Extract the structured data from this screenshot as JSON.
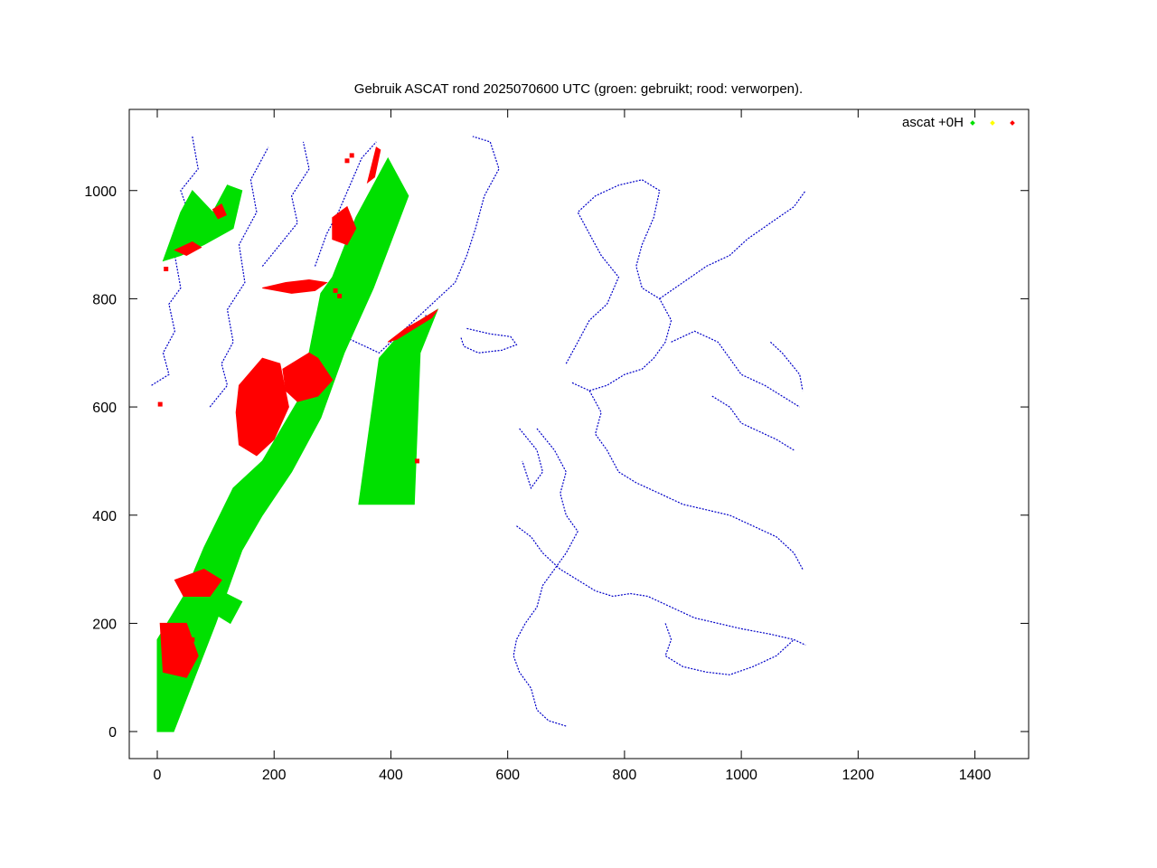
{
  "chart_data": {
    "type": "scatter",
    "title": "Gebruik ASCAT rond 2025070600 UTC (groen: gebruikt; rood: verworpen).",
    "xlabel": "",
    "ylabel": "",
    "xlim": [
      -48,
      1492
    ],
    "ylim": [
      -50,
      1150
    ],
    "x_ticks": [
      0,
      200,
      400,
      600,
      800,
      1000,
      1200,
      1400
    ],
    "y_ticks": [
      0,
      200,
      400,
      600,
      800,
      1000
    ],
    "grid": false,
    "legend_position": "top-right",
    "legend": {
      "label": "ascat +0H",
      "colors": [
        "#00e000",
        "#ffff00",
        "#ff0000"
      ]
    },
    "colors": {
      "used": "#00e000",
      "rejected": "#ff0000",
      "coastline": "#0000c8"
    },
    "series": [
      {
        "kind": "used",
        "polygons": [
          [
            [
              0,
              0
            ],
            [
              28,
              0
            ],
            [
              100,
              200
            ],
            [
              145,
              335
            ],
            [
              180,
              400
            ],
            [
              230,
              480
            ],
            [
              280,
              580
            ],
            [
              320,
              700
            ],
            [
              370,
              820
            ],
            [
              430,
              990
            ],
            [
              395,
              1060
            ],
            [
              340,
              950
            ],
            [
              300,
              840
            ],
            [
              280,
              810
            ],
            [
              260,
              700
            ],
            [
              240,
              610
            ],
            [
              180,
              500
            ],
            [
              130,
              450
            ],
            [
              80,
              340
            ],
            [
              45,
              250
            ],
            [
              0,
              170
            ]
          ],
          [
            [
              40,
              960
            ],
            [
              60,
              1000
            ],
            [
              95,
              960
            ],
            [
              120,
              1010
            ],
            [
              145,
              1000
            ],
            [
              130,
              930
            ],
            [
              80,
              900
            ],
            [
              40,
              880
            ],
            [
              10,
              870
            ]
          ],
          [
            [
              345,
              420
            ],
            [
              440,
              420
            ],
            [
              450,
              700
            ],
            [
              480,
              780
            ],
            [
              420,
              740
            ],
            [
              380,
              690
            ]
          ],
          [
            [
              45,
              240
            ],
            [
              80,
              230
            ],
            [
              125,
              200
            ],
            [
              145,
              240
            ],
            [
              90,
              270
            ]
          ]
        ]
      },
      {
        "kind": "rejected",
        "polygons": [
          [
            [
              140,
              640
            ],
            [
              180,
              690
            ],
            [
              210,
              680
            ],
            [
              225,
              600
            ],
            [
              200,
              540
            ],
            [
              170,
              510
            ],
            [
              140,
              530
            ],
            [
              135,
              590
            ]
          ],
          [
            [
              215,
              670
            ],
            [
              260,
              700
            ],
            [
              275,
              690
            ],
            [
              300,
              650
            ],
            [
              275,
              620
            ],
            [
              240,
              610
            ],
            [
              220,
              630
            ]
          ],
          [
            [
              5,
              200
            ],
            [
              50,
              200
            ],
            [
              70,
              140
            ],
            [
              50,
              100
            ],
            [
              10,
              110
            ]
          ],
          [
            [
              30,
              280
            ],
            [
              80,
              300
            ],
            [
              110,
              280
            ],
            [
              90,
              250
            ],
            [
              45,
              250
            ]
          ],
          [
            [
              300,
              950
            ],
            [
              325,
              970
            ],
            [
              340,
              930
            ],
            [
              325,
              900
            ],
            [
              300,
              910
            ]
          ],
          [
            [
              180,
              820
            ],
            [
              220,
              830
            ],
            [
              260,
              835
            ],
            [
              290,
              830
            ],
            [
              270,
              815
            ],
            [
              230,
              810
            ]
          ],
          [
            [
              360,
              1015
            ],
            [
              375,
              1080
            ],
            [
              382,
              1075
            ],
            [
              372,
              1025
            ]
          ],
          [
            [
              395,
              720
            ],
            [
              425,
              745
            ],
            [
              450,
              760
            ],
            [
              480,
              780
            ],
            [
              470,
              765
            ],
            [
              440,
              745
            ],
            [
              410,
              725
            ]
          ],
          [
            [
              30,
              890
            ],
            [
              60,
              905
            ],
            [
              75,
              895
            ],
            [
              50,
              880
            ]
          ],
          [
            [
              95,
              965
            ],
            [
              110,
              975
            ],
            [
              118,
              955
            ],
            [
              104,
              948
            ]
          ]
        ],
        "points": [
          [
            5,
            605
          ],
          [
            15,
            855
          ],
          [
            305,
            815
          ],
          [
            312,
            805
          ],
          [
            325,
            1055
          ],
          [
            333,
            1065
          ],
          [
            445,
            500
          ],
          [
            50,
            160
          ],
          [
            60,
            170
          ],
          [
            40,
            130
          ]
        ]
      }
    ],
    "coastlines": [
      [
        [
          -10,
          640
        ],
        [
          20,
          660
        ],
        [
          10,
          700
        ],
        [
          30,
          740
        ],
        [
          20,
          790
        ],
        [
          40,
          820
        ],
        [
          30,
          880
        ],
        [
          60,
          940
        ],
        [
          40,
          1000
        ],
        [
          70,
          1040
        ],
        [
          60,
          1100
        ]
      ],
      [
        [
          90,
          600
        ],
        [
          120,
          640
        ],
        [
          110,
          680
        ],
        [
          130,
          720
        ],
        [
          120,
          780
        ],
        [
          150,
          830
        ],
        [
          140,
          900
        ],
        [
          170,
          960
        ],
        [
          160,
          1020
        ],
        [
          190,
          1080
        ]
      ],
      [
        [
          180,
          860
        ],
        [
          210,
          900
        ],
        [
          240,
          940
        ],
        [
          230,
          990
        ],
        [
          260,
          1040
        ],
        [
          250,
          1090
        ]
      ],
      [
        [
          270,
          860
        ],
        [
          290,
          920
        ],
        [
          310,
          960
        ],
        [
          330,
          1010
        ],
        [
          350,
          1060
        ],
        [
          375,
          1090
        ]
      ],
      [
        [
          300,
          740
        ],
        [
          340,
          720
        ],
        [
          380,
          700
        ],
        [
          420,
          740
        ],
        [
          460,
          780
        ],
        [
          480,
          800
        ],
        [
          510,
          830
        ],
        [
          530,
          880
        ],
        [
          545,
          930
        ],
        [
          560,
          990
        ],
        [
          585,
          1040
        ],
        [
          570,
          1090
        ],
        [
          540,
          1100
        ]
      ],
      [
        [
          430,
          700
        ],
        [
          450,
          730
        ],
        [
          460,
          770
        ]
      ],
      [
        [
          530,
          745
        ],
        [
          570,
          735
        ],
        [
          605,
          730
        ],
        [
          615,
          715
        ],
        [
          590,
          705
        ],
        [
          550,
          700
        ],
        [
          525,
          712
        ],
        [
          520,
          728
        ]
      ],
      [
        [
          700,
          680
        ],
        [
          720,
          720
        ],
        [
          740,
          760
        ],
        [
          770,
          790
        ],
        [
          790,
          840
        ],
        [
          760,
          880
        ],
        [
          740,
          920
        ],
        [
          720,
          960
        ],
        [
          750,
          990
        ],
        [
          790,
          1010
        ],
        [
          830,
          1020
        ],
        [
          860,
          1000
        ],
        [
          850,
          950
        ],
        [
          830,
          900
        ],
        [
          820,
          860
        ],
        [
          830,
          820
        ],
        [
          860,
          800
        ],
        [
          880,
          760
        ],
        [
          870,
          720
        ],
        [
          850,
          690
        ],
        [
          830,
          670
        ],
        [
          800,
          660
        ],
        [
          770,
          640
        ],
        [
          740,
          630
        ],
        [
          710,
          645
        ]
      ],
      [
        [
          860,
          800
        ],
        [
          900,
          830
        ],
        [
          940,
          860
        ],
        [
          980,
          880
        ],
        [
          1010,
          910
        ],
        [
          1050,
          940
        ],
        [
          1090,
          970
        ],
        [
          1110,
          1000
        ]
      ],
      [
        [
          880,
          720
        ],
        [
          920,
          740
        ],
        [
          960,
          720
        ],
        [
          980,
          690
        ],
        [
          1000,
          660
        ],
        [
          1040,
          640
        ],
        [
          1070,
          620
        ],
        [
          1100,
          600
        ]
      ],
      [
        [
          740,
          630
        ],
        [
          760,
          590
        ],
        [
          750,
          550
        ],
        [
          770,
          520
        ],
        [
          790,
          480
        ],
        [
          820,
          460
        ],
        [
          860,
          440
        ],
        [
          900,
          420
        ],
        [
          940,
          410
        ],
        [
          980,
          400
        ],
        [
          1020,
          380
        ],
        [
          1060,
          360
        ],
        [
          1090,
          330
        ],
        [
          1105,
          300
        ]
      ],
      [
        [
          650,
          560
        ],
        [
          680,
          520
        ],
        [
          700,
          480
        ],
        [
          690,
          440
        ],
        [
          700,
          400
        ],
        [
          720,
          370
        ],
        [
          700,
          330
        ],
        [
          680,
          300
        ],
        [
          660,
          270
        ],
        [
          650,
          230
        ],
        [
          630,
          200
        ],
        [
          615,
          170
        ],
        [
          610,
          140
        ],
        [
          620,
          110
        ],
        [
          640,
          80
        ],
        [
          650,
          40
        ],
        [
          670,
          20
        ],
        [
          700,
          10
        ]
      ],
      [
        [
          615,
          380
        ],
        [
          640,
          360
        ],
        [
          660,
          330
        ],
        [
          690,
          300
        ],
        [
          720,
          280
        ],
        [
          750,
          260
        ],
        [
          780,
          250
        ],
        [
          810,
          255
        ],
        [
          840,
          250
        ],
        [
          880,
          230
        ],
        [
          920,
          210
        ],
        [
          960,
          200
        ],
        [
          1000,
          190
        ],
        [
          1050,
          180
        ],
        [
          1090,
          170
        ],
        [
          1110,
          160
        ]
      ],
      [
        [
          870,
          200
        ],
        [
          880,
          170
        ],
        [
          870,
          140
        ],
        [
          900,
          120
        ],
        [
          940,
          110
        ],
        [
          980,
          105
        ],
        [
          1020,
          120
        ],
        [
          1060,
          140
        ],
        [
          1090,
          170
        ]
      ],
      [
        [
          620,
          560
        ],
        [
          650,
          520
        ],
        [
          660,
          480
        ],
        [
          640,
          450
        ],
        [
          625,
          500
        ]
      ],
      [
        [
          950,
          620
        ],
        [
          980,
          600
        ],
        [
          1000,
          570
        ],
        [
          1020,
          560
        ],
        [
          1060,
          540
        ],
        [
          1090,
          520
        ]
      ],
      [
        [
          1050,
          720
        ],
        [
          1070,
          700
        ],
        [
          1085,
          680
        ],
        [
          1100,
          660
        ],
        [
          1105,
          630
        ]
      ]
    ]
  }
}
